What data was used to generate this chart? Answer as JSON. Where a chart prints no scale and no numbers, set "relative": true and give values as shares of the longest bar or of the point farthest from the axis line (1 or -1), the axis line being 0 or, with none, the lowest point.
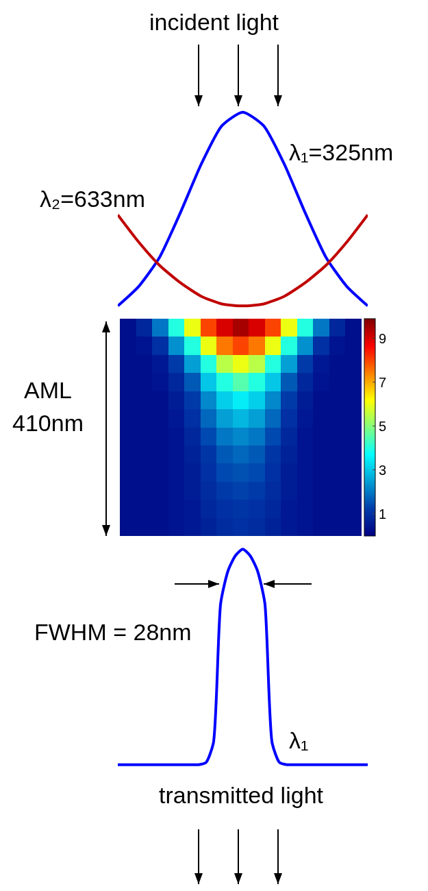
{
  "chart_data": [
    {
      "type": "line",
      "title": "incident light",
      "relative": true,
      "categories": [
        null,
        null,
        null,
        null,
        null,
        null,
        null,
        null,
        null,
        null,
        null,
        null,
        null
      ],
      "series": [
        {
          "name": "λ₁=325nm",
          "color": "#0000ff",
          "values": [
            0,
            0.1,
            0.25,
            0.48,
            0.73,
            0.93,
            1,
            0.93,
            0.73,
            0.48,
            0.25,
            0.1,
            0
          ]
        },
        {
          "name": "λ₂=633nm",
          "color": "#c00000",
          "values": [
            0.47,
            0.33,
            0.21,
            0.12,
            0.05,
            0.01,
            0,
            0.01,
            0.05,
            0.12,
            0.21,
            0.33,
            0.47
          ]
        }
      ]
    },
    {
      "type": "heatmap",
      "ylabel": "AML 410nm",
      "tick_labels": false,
      "clim": [
        0,
        9.9
      ],
      "cticks": [
        1,
        3,
        5,
        7,
        9
      ],
      "categories": [
        null,
        null,
        null,
        null,
        null,
        null,
        null,
        null,
        null,
        null,
        null,
        null,
        null,
        null,
        null
      ],
      "y_categories": [
        null,
        null,
        null,
        null,
        null,
        null,
        null,
        null,
        null,
        null,
        null,
        null
      ],
      "cells": [
        [
          0.3,
          0.8,
          2,
          4,
          6,
          8,
          9,
          9.5,
          9,
          8,
          6,
          4,
          2,
          0.8,
          0.3
        ],
        [
          0.3,
          0.4,
          1,
          2.3,
          4,
          6,
          7.5,
          8,
          7.5,
          6,
          4,
          2.3,
          1,
          0.4,
          0.3
        ],
        [
          0.3,
          0.3,
          0.5,
          1.2,
          2.5,
          4,
          5.5,
          6,
          5.5,
          4,
          2.5,
          1.2,
          0.5,
          0.3,
          0.3
        ],
        [
          0.3,
          0.3,
          0.4,
          0.8,
          1.6,
          3,
          4,
          4.5,
          4,
          3,
          1.6,
          0.8,
          0.4,
          0.3,
          0.3
        ],
        [
          0.3,
          0.3,
          0.3,
          0.6,
          1.2,
          2.2,
          3.1,
          3.5,
          3.1,
          2.2,
          1.2,
          0.6,
          0.3,
          0.3,
          0.3
        ],
        [
          0.3,
          0.3,
          0.3,
          0.5,
          1,
          1.8,
          2.5,
          2.8,
          2.5,
          1.8,
          1,
          0.5,
          0.3,
          0.3,
          0.3
        ],
        [
          0.3,
          0.3,
          0.3,
          0.4,
          0.8,
          1.4,
          2,
          2.2,
          2,
          1.4,
          0.8,
          0.4,
          0.3,
          0.3,
          0.3
        ],
        [
          0.3,
          0.3,
          0.3,
          0.4,
          0.7,
          1.1,
          1.6,
          1.8,
          1.6,
          1.1,
          0.7,
          0.4,
          0.3,
          0.3,
          0.3
        ],
        [
          0.3,
          0.3,
          0.3,
          0.4,
          0.6,
          1,
          1.4,
          1.5,
          1.4,
          1,
          0.6,
          0.4,
          0.3,
          0.3,
          0.3
        ],
        [
          0.3,
          0.3,
          0.3,
          0.4,
          0.6,
          0.9,
          1.2,
          1.3,
          1.2,
          0.9,
          0.6,
          0.4,
          0.3,
          0.3,
          0.3
        ],
        [
          0.3,
          0.3,
          0.3,
          0.4,
          0.5,
          0.8,
          1,
          1.1,
          1,
          0.8,
          0.5,
          0.4,
          0.3,
          0.3,
          0.3
        ],
        [
          0.3,
          0.3,
          0.3,
          0.4,
          0.5,
          0.7,
          0.9,
          1,
          0.9,
          0.7,
          0.5,
          0.4,
          0.3,
          0.3,
          0.3
        ]
      ]
    },
    {
      "type": "line",
      "relative": true,
      "annotations": [
        "FWHM = 28nm",
        "transmitted light"
      ],
      "categories": [
        null,
        null,
        null,
        null,
        null,
        null,
        null,
        null,
        null,
        null,
        null,
        null,
        null,
        null,
        null,
        null,
        null,
        null,
        null,
        null,
        null,
        null,
        null,
        null,
        null,
        null,
        null,
        null,
        null,
        null,
        null,
        null,
        null,
        null,
        null
      ],
      "series": [
        {
          "name": "λ₁",
          "color": "#0000ff",
          "values": [
            0,
            0,
            0,
            0,
            0,
            0,
            0,
            0,
            0,
            0,
            0,
            0,
            0.01,
            0.1,
            0.75,
            0.9,
            0.97,
            1,
            0.97,
            0.9,
            0.75,
            0.1,
            0.01,
            0,
            0,
            0,
            0,
            0,
            0,
            0,
            0,
            0,
            0,
            0,
            0
          ]
        }
      ]
    }
  ]
}
